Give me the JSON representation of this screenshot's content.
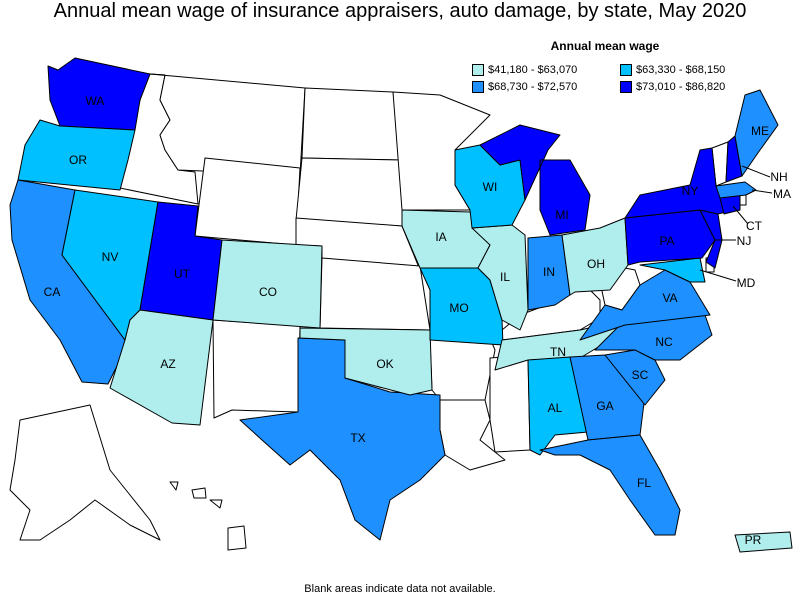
{
  "title": "Annual mean wage of insurance appraisers, auto damage, by state, May 2020",
  "legend": {
    "title": "Annual mean wage",
    "items": [
      {
        "label": "$41,180 - $63,070",
        "color": "#b0eeee"
      },
      {
        "label": "$63,330 - $68,150",
        "color": "#00c0ff"
      },
      {
        "label": "$68,730 - $72,570",
        "color": "#1e90ff"
      },
      {
        "label": "$73,010 - $86,820",
        "color": "#0000ff"
      }
    ]
  },
  "footnote": "Blank areas indicate data not available.",
  "states": {
    "WA": {
      "label": "WA",
      "bin": 3
    },
    "OR": {
      "label": "OR",
      "bin": 1
    },
    "CA": {
      "label": "CA",
      "bin": 2
    },
    "NV": {
      "label": "NV",
      "bin": 1
    },
    "UT": {
      "label": "UT",
      "bin": 3
    },
    "AZ": {
      "label": "AZ",
      "bin": 0
    },
    "CO": {
      "label": "CO",
      "bin": 0
    },
    "TX": {
      "label": "TX",
      "bin": 2
    },
    "OK": {
      "label": "OK",
      "bin": 0
    },
    "IA": {
      "label": "IA",
      "bin": 0
    },
    "MO": {
      "label": "MO",
      "bin": 1
    },
    "IL": {
      "label": "IL",
      "bin": 0
    },
    "WI": {
      "label": "WI",
      "bin": 1
    },
    "MI": {
      "label": "MI",
      "bin": 3
    },
    "IN": {
      "label": "IN",
      "bin": 2
    },
    "OH": {
      "label": "OH",
      "bin": 0
    },
    "TN": {
      "label": "TN",
      "bin": 0
    },
    "AL": {
      "label": "AL",
      "bin": 1
    },
    "GA": {
      "label": "GA",
      "bin": 2
    },
    "FL": {
      "label": "FL",
      "bin": 2
    },
    "SC": {
      "label": "SC",
      "bin": 2
    },
    "NC": {
      "label": "NC",
      "bin": 2
    },
    "VA": {
      "label": "VA",
      "bin": 2
    },
    "MD": {
      "label": "MD",
      "bin": 1
    },
    "PA": {
      "label": "PA",
      "bin": 3
    },
    "NJ": {
      "label": "NJ",
      "bin": 3
    },
    "NY": {
      "label": "NY",
      "bin": 3
    },
    "CT": {
      "label": "CT",
      "bin": 3
    },
    "MA": {
      "label": "MA",
      "bin": 2
    },
    "NH": {
      "label": "NH",
      "bin": 3
    },
    "ME": {
      "label": "ME",
      "bin": 2
    },
    "PR": {
      "label": "PR",
      "bin": 0
    }
  }
}
